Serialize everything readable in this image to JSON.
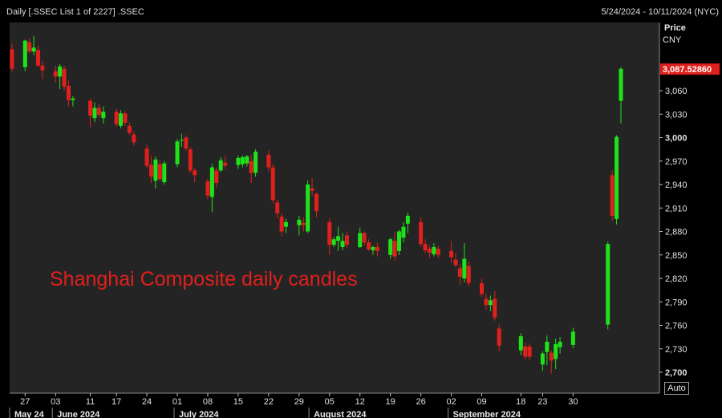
{
  "header": {
    "title": "Daily [.SSEC List 1 of 2227] .SSEC",
    "date_range": "5/24/2024 - 10/11/2024 (NYC)"
  },
  "axis": {
    "label_line1": "Price",
    "label_line2": "CNY",
    "auto_button": "Auto"
  },
  "annotation": "Shanghai Composite daily candles",
  "colors": {
    "up": "#1fe21a",
    "down": "#e0201c",
    "background": "#242424",
    "last_price_tag": "#e0201c"
  },
  "chart_data": {
    "type": "candlestick",
    "y_ticks": [
      "2,700",
      "2,730",
      "2,760",
      "2,790",
      "2,820",
      "2,850",
      "2,880",
      "2,910",
      "2,940",
      "2,970",
      "3,000",
      "3,030",
      "3,060"
    ],
    "y_tick_values": [
      2700,
      2730,
      2760,
      2790,
      2820,
      2850,
      2880,
      2910,
      2940,
      2970,
      3000,
      3030,
      3060
    ],
    "ylim": [
      2685,
      3100
    ],
    "last_price_label": "3,087.52860",
    "last_price": 3087.5286,
    "x_tick_labels": [
      "27",
      "03",
      "11",
      "17",
      "24",
      "01",
      "08",
      "15",
      "22",
      "29",
      "05",
      "12",
      "19",
      "26",
      "02",
      "09",
      "18",
      "23",
      "30"
    ],
    "x_tick_dates": [
      "2024-05-27",
      "2024-06-03",
      "2024-06-11",
      "2024-06-17",
      "2024-06-24",
      "2024-07-01",
      "2024-07-08",
      "2024-07-15",
      "2024-07-22",
      "2024-07-29",
      "2024-08-05",
      "2024-08-12",
      "2024-08-19",
      "2024-08-26",
      "2024-09-02",
      "2024-09-09",
      "2024-09-18",
      "2024-09-23",
      "2024-09-30"
    ],
    "months": [
      {
        "label": "May 24",
        "date": "2024-05-24"
      },
      {
        "label": "June 2024",
        "date": "2024-06-03"
      },
      {
        "label": "July 2024",
        "date": "2024-07-01"
      },
      {
        "label": "August 2024",
        "date": "2024-08-01"
      },
      {
        "label": "September 2024",
        "date": "2024-09-02"
      }
    ],
    "candles": [
      {
        "date": "2024-05-24",
        "open": 3113,
        "high": 3120,
        "low": 3084,
        "close": 3088
      },
      {
        "date": "2024-05-27",
        "open": 3090,
        "high": 3125,
        "low": 3085,
        "close": 3124
      },
      {
        "date": "2024-05-28",
        "open": 3122,
        "high": 3127,
        "low": 3108,
        "close": 3110
      },
      {
        "date": "2024-05-29",
        "open": 3110,
        "high": 3130,
        "low": 3105,
        "close": 3115
      },
      {
        "date": "2024-05-30",
        "open": 3112,
        "high": 3118,
        "low": 3090,
        "close": 3092
      },
      {
        "date": "2024-05-31",
        "open": 3092,
        "high": 3098,
        "low": 3075,
        "close": 3086
      },
      {
        "date": "2024-06-03",
        "open": 3085,
        "high": 3092,
        "low": 3070,
        "close": 3078
      },
      {
        "date": "2024-06-04",
        "open": 3078,
        "high": 3094,
        "low": 3062,
        "close": 3091
      },
      {
        "date": "2024-06-05",
        "open": 3088,
        "high": 3092,
        "low": 3060,
        "close": 3065
      },
      {
        "date": "2024-06-06",
        "open": 3066,
        "high": 3073,
        "low": 3040,
        "close": 3048
      },
      {
        "date": "2024-06-07",
        "open": 3048,
        "high": 3053,
        "low": 3040,
        "close": 3050
      },
      {
        "date": "2024-06-11",
        "open": 3047,
        "high": 3050,
        "low": 3013,
        "close": 3028
      },
      {
        "date": "2024-06-12",
        "open": 3025,
        "high": 3045,
        "low": 3020,
        "close": 3038
      },
      {
        "date": "2024-06-13",
        "open": 3038,
        "high": 3043,
        "low": 3025,
        "close": 3029
      },
      {
        "date": "2024-06-14",
        "open": 3025,
        "high": 3040,
        "low": 3018,
        "close": 3033
      },
      {
        "date": "2024-06-17",
        "open": 3033,
        "high": 3037,
        "low": 3014,
        "close": 3017
      },
      {
        "date": "2024-06-18",
        "open": 3015,
        "high": 3035,
        "low": 3012,
        "close": 3031
      },
      {
        "date": "2024-06-19",
        "open": 3031,
        "high": 3034,
        "low": 3015,
        "close": 3019
      },
      {
        "date": "2024-06-20",
        "open": 3015,
        "high": 3019,
        "low": 3003,
        "close": 3006
      },
      {
        "date": "2024-06-21",
        "open": 3004,
        "high": 3008,
        "low": 2990,
        "close": 2994
      },
      {
        "date": "2024-06-24",
        "open": 2986,
        "high": 2991,
        "low": 2961,
        "close": 2964
      },
      {
        "date": "2024-06-25",
        "open": 2965,
        "high": 2977,
        "low": 2942,
        "close": 2950
      },
      {
        "date": "2024-06-26",
        "open": 2945,
        "high": 2976,
        "low": 2935,
        "close": 2972
      },
      {
        "date": "2024-06-27",
        "open": 2966,
        "high": 2971,
        "low": 2944,
        "close": 2947
      },
      {
        "date": "2024-06-28",
        "open": 2943,
        "high": 2970,
        "low": 2940,
        "close": 2967
      },
      {
        "date": "2024-07-01",
        "open": 2966,
        "high": 2998,
        "low": 2962,
        "close": 2995
      },
      {
        "date": "2024-07-02",
        "open": 2996,
        "high": 3005,
        "low": 2988,
        "close": 2997
      },
      {
        "date": "2024-07-03",
        "open": 3000,
        "high": 3003,
        "low": 2983,
        "close": 2986
      },
      {
        "date": "2024-07-04",
        "open": 2985,
        "high": 2988,
        "low": 2955,
        "close": 2958
      },
      {
        "date": "2024-07-05",
        "open": 2958,
        "high": 2961,
        "low": 2943,
        "close": 2952
      },
      {
        "date": "2024-07-08",
        "open": 2944,
        "high": 2948,
        "low": 2921,
        "close": 2926
      },
      {
        "date": "2024-07-09",
        "open": 2924,
        "high": 2966,
        "low": 2905,
        "close": 2962
      },
      {
        "date": "2024-07-10",
        "open": 2958,
        "high": 2962,
        "low": 2936,
        "close": 2942
      },
      {
        "date": "2024-07-11",
        "open": 2958,
        "high": 2975,
        "low": 2956,
        "close": 2971
      },
      {
        "date": "2024-07-12",
        "open": 2968,
        "high": 2977,
        "low": 2960,
        "close": 2964
      },
      {
        "date": "2024-07-15",
        "open": 2965,
        "high": 2977,
        "low": 2960,
        "close": 2974
      },
      {
        "date": "2024-07-16",
        "open": 2966,
        "high": 2977,
        "low": 2962,
        "close": 2975
      },
      {
        "date": "2024-07-17",
        "open": 2967,
        "high": 2978,
        "low": 2963,
        "close": 2976
      },
      {
        "date": "2024-07-18",
        "open": 2970,
        "high": 2978,
        "low": 2942,
        "close": 2955
      },
      {
        "date": "2024-07-19",
        "open": 2955,
        "high": 2985,
        "low": 2950,
        "close": 2982
      },
      {
        "date": "2024-07-22",
        "open": 2978,
        "high": 2984,
        "low": 2956,
        "close": 2962
      },
      {
        "date": "2024-07-23",
        "open": 2962,
        "high": 2966,
        "low": 2916,
        "close": 2920
      },
      {
        "date": "2024-07-24",
        "open": 2917,
        "high": 2921,
        "low": 2897,
        "close": 2903
      },
      {
        "date": "2024-07-25",
        "open": 2899,
        "high": 2903,
        "low": 2874,
        "close": 2880
      },
      {
        "date": "2024-07-26",
        "open": 2886,
        "high": 2896,
        "low": 2878,
        "close": 2892
      },
      {
        "date": "2024-07-29",
        "open": 2888,
        "high": 2900,
        "low": 2875,
        "close": 2895
      },
      {
        "date": "2024-07-30",
        "open": 2891,
        "high": 2898,
        "low": 2880,
        "close": 2888
      },
      {
        "date": "2024-07-31",
        "open": 2880,
        "high": 2945,
        "low": 2878,
        "close": 2940
      },
      {
        "date": "2024-08-01",
        "open": 2935,
        "high": 2948,
        "low": 2925,
        "close": 2932
      },
      {
        "date": "2024-08-02",
        "open": 2928,
        "high": 2930,
        "low": 2898,
        "close": 2906
      },
      {
        "date": "2024-08-05",
        "open": 2892,
        "high": 2897,
        "low": 2850,
        "close": 2863
      },
      {
        "date": "2024-08-06",
        "open": 2863,
        "high": 2873,
        "low": 2860,
        "close": 2870
      },
      {
        "date": "2024-08-07",
        "open": 2868,
        "high": 2886,
        "low": 2855,
        "close": 2874
      },
      {
        "date": "2024-08-08",
        "open": 2860,
        "high": 2878,
        "low": 2856,
        "close": 2868
      },
      {
        "date": "2024-08-09",
        "open": 2875,
        "high": 2880,
        "low": 2858,
        "close": 2863
      },
      {
        "date": "2024-08-12",
        "open": 2860,
        "high": 2885,
        "low": 2859,
        "close": 2878
      },
      {
        "date": "2024-08-13",
        "open": 2878,
        "high": 2880,
        "low": 2862,
        "close": 2866
      },
      {
        "date": "2024-08-14",
        "open": 2866,
        "high": 2870,
        "low": 2855,
        "close": 2857
      },
      {
        "date": "2024-08-15",
        "open": 2856,
        "high": 2862,
        "low": 2850,
        "close": 2860
      },
      {
        "date": "2024-08-16",
        "open": 2860,
        "high": 2866,
        "low": 2848,
        "close": 2855
      },
      {
        "date": "2024-08-19",
        "open": 2850,
        "high": 2872,
        "low": 2845,
        "close": 2870
      },
      {
        "date": "2024-08-20",
        "open": 2868,
        "high": 2880,
        "low": 2842,
        "close": 2848
      },
      {
        "date": "2024-08-21",
        "open": 2855,
        "high": 2882,
        "low": 2850,
        "close": 2880
      },
      {
        "date": "2024-08-22",
        "open": 2872,
        "high": 2892,
        "low": 2866,
        "close": 2886
      },
      {
        "date": "2024-08-23",
        "open": 2890,
        "high": 2904,
        "low": 2878,
        "close": 2900
      },
      {
        "date": "2024-08-26",
        "open": 2892,
        "high": 2898,
        "low": 2860,
        "close": 2864
      },
      {
        "date": "2024-08-27",
        "open": 2864,
        "high": 2870,
        "low": 2852,
        "close": 2856
      },
      {
        "date": "2024-08-28",
        "open": 2858,
        "high": 2862,
        "low": 2846,
        "close": 2853
      },
      {
        "date": "2024-08-29",
        "open": 2851,
        "high": 2865,
        "low": 2848,
        "close": 2860
      },
      {
        "date": "2024-08-30",
        "open": 2858,
        "high": 2862,
        "low": 2846,
        "close": 2850
      },
      {
        "date": "2024-09-02",
        "open": 2855,
        "high": 2868,
        "low": 2840,
        "close": 2847
      },
      {
        "date": "2024-09-03",
        "open": 2844,
        "high": 2852,
        "low": 2834,
        "close": 2837
      },
      {
        "date": "2024-09-04",
        "open": 2833,
        "high": 2838,
        "low": 2812,
        "close": 2822
      },
      {
        "date": "2024-09-05",
        "open": 2820,
        "high": 2865,
        "low": 2815,
        "close": 2845
      },
      {
        "date": "2024-09-06",
        "open": 2836,
        "high": 2842,
        "low": 2810,
        "close": 2814
      },
      {
        "date": "2024-09-09",
        "open": 2814,
        "high": 2820,
        "low": 2796,
        "close": 2800
      },
      {
        "date": "2024-09-10",
        "open": 2794,
        "high": 2800,
        "low": 2780,
        "close": 2786
      },
      {
        "date": "2024-09-11",
        "open": 2786,
        "high": 2798,
        "low": 2778,
        "close": 2792
      },
      {
        "date": "2024-09-12",
        "open": 2794,
        "high": 2804,
        "low": 2766,
        "close": 2770
      },
      {
        "date": "2024-09-13",
        "open": 2756,
        "high": 2761,
        "low": 2727,
        "close": 2734
      },
      {
        "date": "2024-09-18",
        "open": 2728,
        "high": 2750,
        "low": 2722,
        "close": 2746
      },
      {
        "date": "2024-09-19",
        "open": 2733,
        "high": 2738,
        "low": 2716,
        "close": 2720
      },
      {
        "date": "2024-09-20",
        "open": 2733,
        "high": 2737,
        "low": 2716,
        "close": 2720
      },
      {
        "date": "2024-09-23",
        "open": 2710,
        "high": 2727,
        "low": 2702,
        "close": 2724
      },
      {
        "date": "2024-09-24",
        "open": 2726,
        "high": 2747,
        "low": 2709,
        "close": 2739
      },
      {
        "date": "2024-09-25",
        "open": 2725,
        "high": 2728,
        "low": 2698,
        "close": 2715
      },
      {
        "date": "2024-09-26",
        "open": 2717,
        "high": 2743,
        "low": 2704,
        "close": 2736
      },
      {
        "date": "2024-09-27",
        "open": 2732,
        "high": 2745,
        "low": 2724,
        "close": 2739
      },
      {
        "date": "2024-09-30",
        "open": 2735,
        "high": 2757,
        "low": 2731,
        "close": 2752
      },
      {
        "date": "2024-10-08",
        "open": 2761,
        "high": 2867,
        "low": 2755,
        "close": 2864
      },
      {
        "date": "2024-10-09",
        "open": 2952,
        "high": 2958,
        "low": 2894,
        "close": 2900
      },
      {
        "date": "2024-10-10",
        "open": 2896,
        "high": 3003,
        "low": 2889,
        "close": 3001
      },
      {
        "date": "2024-10-11",
        "open": 3047,
        "high": 3090,
        "low": 3018,
        "close": 3088
      }
    ]
  }
}
